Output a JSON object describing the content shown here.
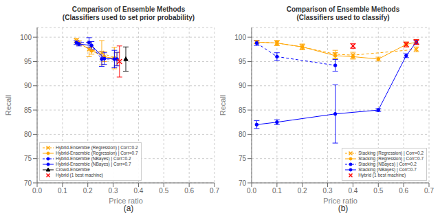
{
  "chart_data": [
    {
      "type": "line",
      "title": "Comparison of Ensemble Methods\n(Classifiers used to set prior probability)",
      "x_label": "Price ratio",
      "y_label": "Recall",
      "annotations": [
        "(a)"
      ],
      "xlim": [
        0.0,
        0.7
      ],
      "ylim": [
        70,
        102
      ],
      "xticks": [
        {
          "value": 0.0,
          "label": "0.0"
        },
        0.1,
        0.2,
        0.3,
        0.4,
        0.5,
        0.6,
        0.7
      ],
      "yticks": [
        70,
        75,
        80,
        85,
        90,
        95,
        100
      ],
      "grid": true,
      "legend": "lower left",
      "series": [
        {
          "name": "Hybrid-Ensemble (Regression) | Corr=0.2",
          "color": "orange",
          "marker": "x",
          "line_style": "dashed",
          "x": [
            0.155,
            0.205,
            0.255,
            0.305
          ],
          "values": [
            99.3,
            97.5,
            96.8,
            95.7
          ],
          "yerr": [
            0.5,
            1.5,
            2.5,
            2.2
          ]
        },
        {
          "name": "Hybrid-Ensemble (Regression) | Corr=0.7",
          "color": "orange",
          "marker": "circle",
          "line_style": "solid",
          "x": [
            0.165,
            0.215,
            0.265,
            0.315
          ],
          "values": [
            98.8,
            97.2,
            96.0,
            95.5
          ],
          "yerr": [
            0.5,
            0.7,
            1.0,
            1.3
          ]
        },
        {
          "name": "Hybrid-Ensemble (NBayes) | Corr=0.2",
          "color": "blue",
          "marker": "circle",
          "line_style": "dashed",
          "x": [
            0.155,
            0.205,
            0.255,
            0.305
          ],
          "values": [
            98.9,
            98.9,
            95.5,
            95.5
          ],
          "yerr": [
            0.4,
            1.0,
            1.5,
            1.8
          ]
        },
        {
          "name": "Hybrid-Ensemble (NBayes) | Corr=0.7",
          "color": "blue",
          "marker": "circle",
          "line_style": "solid",
          "x": [
            0.165,
            0.215,
            0.265,
            0.315
          ],
          "values": [
            98.6,
            98.3,
            95.6,
            95.5
          ],
          "yerr": [
            0.4,
            0.8,
            1.2,
            1.4
          ]
        },
        {
          "name": "Crowd-Ensemble",
          "color": "black",
          "marker": "triangle",
          "line_style": "solid",
          "x": [
            0.35
          ],
          "values": [
            95.5
          ],
          "yerr": [
            2.5
          ]
        },
        {
          "name": "Hybrid (1 best machine)",
          "color": "red",
          "marker": "x",
          "line_style": "none",
          "x": [
            0.325
          ],
          "values": [
            95.0
          ],
          "yerr": [
            3.2
          ]
        }
      ]
    },
    {
      "type": "line",
      "title": "Comparison of Ensemble Methods\n(Classifiers used to classify)",
      "x_label": "Price ratio",
      "y_label": "Recall",
      "annotations": [
        "(b)"
      ],
      "xlim": [
        0.0,
        0.7
      ],
      "ylim": [
        70,
        102
      ],
      "xticks": [
        {
          "value": 0.0,
          "label": "0.0"
        },
        0.1,
        0.2,
        0.3,
        0.4,
        0.5,
        0.6,
        0.7
      ],
      "yticks": [
        70,
        75,
        80,
        85,
        90,
        95,
        100
      ],
      "grid": true,
      "legend": "lower right",
      "series": [
        {
          "name": "Stacking (Regression) | Corr=0.2",
          "color": "orange",
          "marker": "x",
          "line_style": "dashed",
          "x": [
            0.02,
            0.1,
            0.2,
            0.33,
            0.4,
            0.65
          ],
          "values": [
            99.0,
            98.8,
            98.0,
            96.5,
            96.3,
            97.5
          ],
          "yerr": [
            0.3,
            0.5,
            0.6,
            0.8,
            0.6,
            0.5
          ]
        },
        {
          "name": "Stacking (Regression) | Corr=0.7",
          "color": "orange",
          "marker": "circle",
          "line_style": "solid",
          "x": [
            0.02,
            0.1,
            0.2,
            0.33,
            0.4,
            0.5,
            0.61,
            0.65
          ],
          "values": [
            99.0,
            98.8,
            98.0,
            96.2,
            96.0,
            95.5,
            98.5,
            99.0
          ],
          "yerr": [
            0.3,
            0.5,
            0.5,
            0.6,
            0.5,
            0.4,
            0.5,
            0.5
          ]
        },
        {
          "name": "Stacking (NBayes) | Corr=0.2",
          "color": "blue",
          "marker": "circle",
          "line_style": "dashed",
          "x": [
            0.02,
            0.1,
            0.33
          ],
          "values": [
            98.8,
            96.0,
            94.2
          ],
          "yerr": [
            0.5,
            0.8,
            1.2
          ]
        },
        {
          "name": "Stacking (NBayes) | Corr=0.7",
          "color": "blue",
          "marker": "circle",
          "line_style": "solid",
          "x": [
            0.02,
            0.1,
            0.33,
            0.5,
            0.61,
            0.65
          ],
          "values": [
            82.0,
            82.5,
            84.2,
            85.0,
            96.2,
            99.0
          ],
          "yerr": [
            0.8,
            0.5,
            6.0,
            0.3,
            0.4,
            0.4
          ]
        },
        {
          "name": "Hybrid (1 best machine)",
          "color": "red",
          "marker": "x",
          "line_style": "none",
          "x": [
            0.4,
            0.61,
            0.65
          ],
          "values": [
            98.2,
            98.5,
            99.0
          ],
          "yerr": [
            0.5,
            0.5,
            0.5
          ]
        }
      ]
    }
  ]
}
